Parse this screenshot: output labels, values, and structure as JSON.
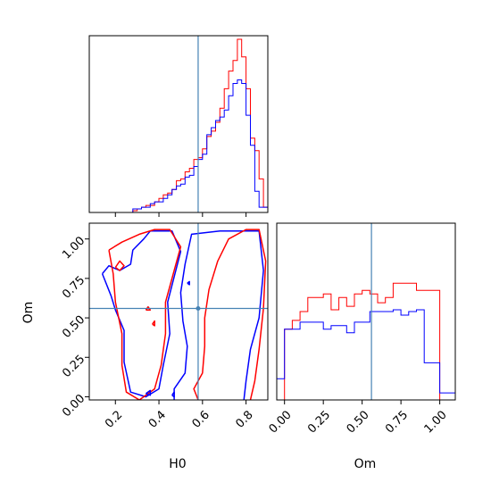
{
  "chart_data": {
    "type": "corner",
    "parameters": [
      "H0",
      "Om"
    ],
    "truths": {
      "H0": 0.58,
      "Om": 0.56
    },
    "colors": {
      "red": "#ff0000",
      "blue": "#0000ff",
      "truth": "#4682b4"
    },
    "hist_H0": {
      "bin_edges": [
        0.08,
        0.1,
        0.12,
        0.14,
        0.16,
        0.18,
        0.2,
        0.22,
        0.24,
        0.26,
        0.28,
        0.3,
        0.32,
        0.34,
        0.36,
        0.38,
        0.4,
        0.42,
        0.44,
        0.46,
        0.48,
        0.5,
        0.52,
        0.54,
        0.56,
        0.58,
        0.6,
        0.62,
        0.64,
        0.66,
        0.68,
        0.7,
        0.72,
        0.74,
        0.76,
        0.78,
        0.8,
        0.82,
        0.84,
        0.86,
        0.88,
        0.9
      ],
      "series": [
        {
          "color": "red",
          "values": [
            0,
            0,
            0,
            0,
            0,
            0,
            0,
            0,
            0,
            0,
            0.01,
            0.02,
            0.03,
            0.04,
            0.04,
            0.06,
            0.08,
            0.1,
            0.11,
            0.13,
            0.18,
            0.19,
            0.23,
            0.25,
            0.3,
            0.31,
            0.36,
            0.43,
            0.46,
            0.51,
            0.59,
            0.7,
            0.8,
            0.86,
            0.98,
            0.88,
            0.7,
            0.42,
            0.35,
            0.19,
            0.03
          ]
        },
        {
          "color": "blue",
          "values": [
            0,
            0,
            0,
            0,
            0,
            0,
            0,
            0,
            0,
            0,
            0.02,
            0.02,
            0.03,
            0.03,
            0.05,
            0.06,
            0.06,
            0.08,
            0.1,
            0.13,
            0.15,
            0.16,
            0.2,
            0.21,
            0.26,
            0.3,
            0.33,
            0.44,
            0.48,
            0.52,
            0.54,
            0.58,
            0.66,
            0.73,
            0.75,
            0.73,
            0.55,
            0.38,
            0.12,
            0.03,
            0.03
          ]
        }
      ]
    },
    "hist_Om": {
      "bin_edges": [
        -0.05,
        0.0,
        0.05,
        0.1,
        0.15,
        0.2,
        0.25,
        0.3,
        0.35,
        0.4,
        0.45,
        0.5,
        0.55,
        0.6,
        0.65,
        0.7,
        0.75,
        0.8,
        0.85,
        0.9,
        0.95,
        1.0,
        1.05,
        1.1
      ],
      "series": [
        {
          "color": "red",
          "values": [
            0,
            0.4,
            0.45,
            0.5,
            0.58,
            0.58,
            0.6,
            0.51,
            0.58,
            0.53,
            0.6,
            0.62,
            0.6,
            0.55,
            0.58,
            0.66,
            0.66,
            0.66,
            0.62,
            0.62,
            0.62,
            0,
            0
          ]
        },
        {
          "color": "blue",
          "values": [
            0.12,
            0.4,
            0.4,
            0.44,
            0.44,
            0.44,
            0.4,
            0.42,
            0.42,
            0.38,
            0.44,
            0.44,
            0.5,
            0.5,
            0.5,
            0.51,
            0.48,
            0.5,
            0.51,
            0.21,
            0.21,
            0.04,
            0.04
          ]
        }
      ]
    },
    "contours": [
      {
        "color": "blue",
        "points": [
          [
            0.47,
            -0.02
          ],
          [
            0.47,
            0.05
          ],
          [
            0.52,
            0.15
          ],
          [
            0.53,
            0.32
          ],
          [
            0.51,
            0.48
          ],
          [
            0.5,
            0.66
          ],
          [
            0.52,
            0.84
          ],
          [
            0.55,
            1.03
          ],
          [
            0.68,
            1.05
          ],
          [
            0.86,
            1.05
          ],
          [
            0.88,
            0.8
          ],
          [
            0.86,
            0.5
          ],
          [
            0.82,
            0.3
          ],
          [
            0.8,
            0.1
          ],
          [
            0.79,
            -0.02
          ]
        ]
      },
      {
        "color": "red",
        "points": [
          [
            0.58,
            -0.02
          ],
          [
            0.56,
            0.05
          ],
          [
            0.6,
            0.15
          ],
          [
            0.61,
            0.32
          ],
          [
            0.61,
            0.5
          ],
          [
            0.63,
            0.68
          ],
          [
            0.67,
            0.86
          ],
          [
            0.72,
            1.0
          ],
          [
            0.8,
            1.06
          ],
          [
            0.86,
            1.06
          ],
          [
            0.89,
            0.86
          ],
          [
            0.88,
            0.56
          ],
          [
            0.86,
            0.3
          ],
          [
            0.84,
            0.1
          ],
          [
            0.82,
            -0.02
          ]
        ]
      },
      {
        "color": "blue",
        "points": [
          [
            0.14,
            0.78
          ],
          [
            0.17,
            0.83
          ],
          [
            0.22,
            0.8
          ],
          [
            0.27,
            0.84
          ],
          [
            0.28,
            0.93
          ],
          [
            0.33,
            1.0
          ],
          [
            0.36,
            1.05
          ],
          [
            0.46,
            1.05
          ],
          [
            0.5,
            0.92
          ],
          [
            0.47,
            0.76
          ],
          [
            0.44,
            0.6
          ],
          [
            0.45,
            0.4
          ],
          [
            0.42,
            0.2
          ],
          [
            0.4,
            0.05
          ],
          [
            0.34,
            0.0
          ],
          [
            0.27,
            0.03
          ],
          [
            0.24,
            0.22
          ],
          [
            0.24,
            0.42
          ],
          [
            0.2,
            0.55
          ],
          [
            0.18,
            0.64
          ],
          [
            0.14,
            0.78
          ]
        ]
      },
      {
        "color": "red",
        "points": [
          [
            0.17,
            0.93
          ],
          [
            0.23,
            0.98
          ],
          [
            0.31,
            1.03
          ],
          [
            0.38,
            1.06
          ],
          [
            0.45,
            1.06
          ],
          [
            0.5,
            0.95
          ],
          [
            0.47,
            0.8
          ],
          [
            0.43,
            0.6
          ],
          [
            0.43,
            0.4
          ],
          [
            0.41,
            0.2
          ],
          [
            0.38,
            0.05
          ],
          [
            0.31,
            -0.02
          ],
          [
            0.25,
            0.03
          ],
          [
            0.23,
            0.2
          ],
          [
            0.23,
            0.4
          ],
          [
            0.2,
            0.6
          ],
          [
            0.19,
            0.78
          ],
          [
            0.17,
            0.93
          ]
        ]
      },
      {
        "color": "red",
        "points": [
          [
            0.2,
            0.82
          ],
          [
            0.22,
            0.86
          ],
          [
            0.24,
            0.83
          ],
          [
            0.22,
            0.8
          ],
          [
            0.2,
            0.82
          ]
        ]
      },
      {
        "color": "blue",
        "points": [
          [
            0.53,
            0.72
          ],
          [
            0.54,
            0.73
          ],
          [
            0.54,
            0.71
          ],
          [
            0.53,
            0.72
          ]
        ]
      },
      {
        "color": "red",
        "points": [
          [
            0.34,
            0.55
          ],
          [
            0.35,
            0.57
          ],
          [
            0.36,
            0.55
          ],
          [
            0.34,
            0.55
          ]
        ]
      },
      {
        "color": "red",
        "points": [
          [
            0.37,
            0.46
          ],
          [
            0.38,
            0.48
          ],
          [
            0.38,
            0.45
          ],
          [
            0.37,
            0.46
          ]
        ]
      },
      {
        "color": "blue",
        "points": [
          [
            0.34,
            0.02
          ],
          [
            0.36,
            0.04
          ],
          [
            0.36,
            0.01
          ],
          [
            0.34,
            0.02
          ]
        ]
      },
      {
        "color": "blue",
        "points": [
          [
            0.46,
            0.01
          ],
          [
            0.47,
            0.03
          ],
          [
            0.47,
            0.0
          ],
          [
            0.46,
            0.01
          ]
        ]
      }
    ],
    "xticks_H0": [
      0.2,
      0.4,
      0.6,
      0.8
    ],
    "xticklabels_H0": [
      "0.2",
      "0.4",
      "0.6",
      "0.8"
    ],
    "yticks_Om": [
      0.0,
      0.25,
      0.5,
      0.75,
      1.0
    ],
    "yticklabels_Om": [
      "0.00",
      "0.25",
      "0.50",
      "0.75",
      "1.00"
    ],
    "xticks_Om": [
      0.0,
      0.25,
      0.5,
      0.75,
      1.0
    ],
    "xticklabels_Om": [
      "0.00",
      "0.25",
      "0.50",
      "0.75",
      "1.00"
    ],
    "xlim_H0": [
      0.08,
      0.9
    ],
    "ylim_Om": [
      -0.02,
      1.1
    ],
    "xlim_Om": [
      -0.05,
      1.1
    ],
    "ylim_hist": [
      0,
      1.0
    ],
    "xlabel_H0": "H0",
    "ylabel_Om": "Om",
    "xlabel_Om": "Om"
  }
}
